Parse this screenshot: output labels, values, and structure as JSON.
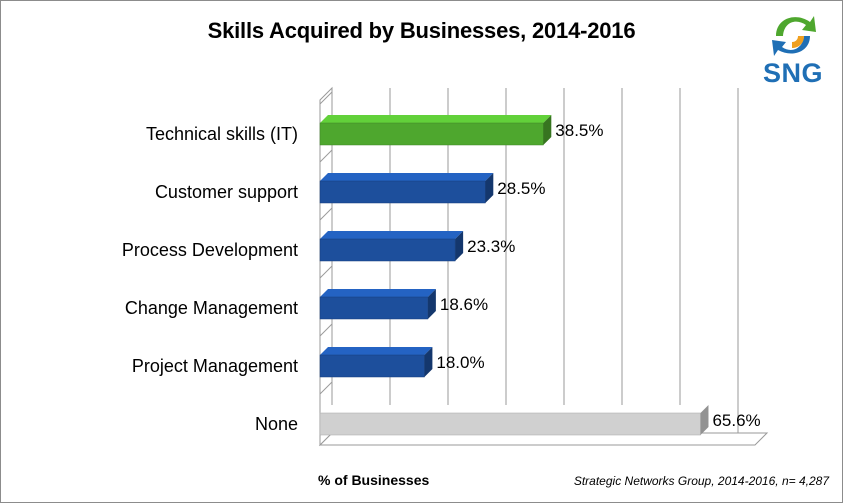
{
  "chart_data": {
    "type": "bar",
    "orientation": "horizontal",
    "title": "Skills Acquired by Businesses, 2014-2016",
    "xlabel": "% of Businesses",
    "ylabel": "",
    "xlim": [
      0,
      75
    ],
    "grid": true,
    "categories": [
      "Technical skills (IT)",
      "Customer support",
      "Process Development",
      "Change Management",
      "Project Management",
      "None"
    ],
    "values": [
      38.5,
      28.5,
      23.3,
      18.6,
      18.0,
      65.6
    ],
    "value_labels": [
      "38.5%",
      "28.5%",
      "23.3%",
      "18.6%",
      "18.0%",
      "65.6%"
    ],
    "bar_colors": [
      "#4ea72e",
      "#1d4f9c",
      "#1d4f9c",
      "#1d4f9c",
      "#1d4f9c",
      "#d0d0d0"
    ],
    "source": "Strategic Networks Group, 2014-2016, n= 4,287"
  },
  "logo": {
    "text": "SNG",
    "colors": [
      "#4ea72e",
      "#1f6fb5",
      "#f0a020"
    ]
  }
}
